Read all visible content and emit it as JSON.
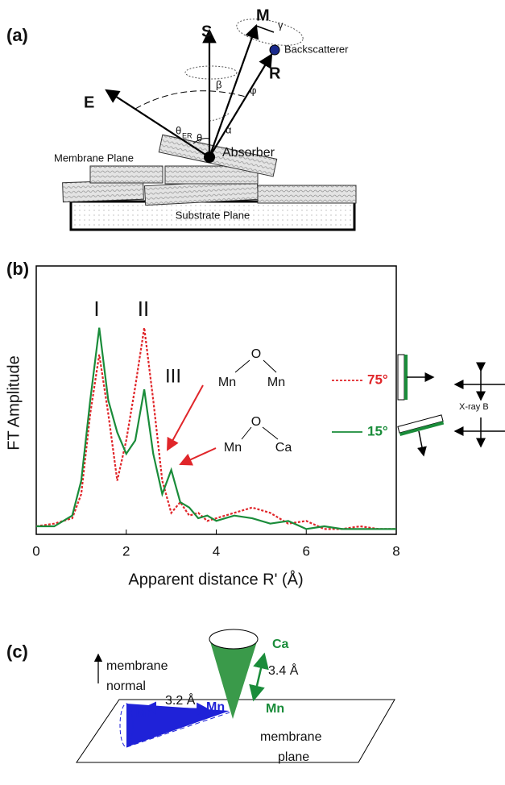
{
  "panel_a": {
    "label": "(a)",
    "S": "S",
    "M": "M",
    "R": "R",
    "E": "E",
    "backscatterer": "Backscatterer",
    "beta": "β",
    "phi": "φ",
    "gamma": "γ",
    "alpha": "α",
    "theta_er": "θ",
    "theta_er_sub": "ER",
    "theta": "θ",
    "membrane_plane": "Membrane Plane",
    "absorber": "Absorber",
    "substrate_plane": "Substrate Plane"
  },
  "chart_data": {
    "type": "line",
    "label": "(b)",
    "xlabel": "Apparent distance R' (Å)",
    "ylabel": "FT Amplitude",
    "x": [
      0,
      0.4,
      0.8,
      1.0,
      1.2,
      1.4,
      1.6,
      1.8,
      2.0,
      2.2,
      2.4,
      2.6,
      2.8,
      3.0,
      3.2,
      3.4,
      3.6,
      3.8,
      4.0,
      4.4,
      4.8,
      5.2,
      5.6,
      6.0,
      6.4,
      6.8,
      7.2,
      7.6,
      8.0
    ],
    "series": [
      {
        "name": "75°",
        "color": "#e0262a",
        "style": "dotted",
        "values": [
          0.03,
          0.04,
          0.06,
          0.15,
          0.45,
          0.67,
          0.45,
          0.2,
          0.35,
          0.55,
          0.77,
          0.5,
          0.2,
          0.08,
          0.12,
          0.07,
          0.08,
          0.05,
          0.06,
          0.08,
          0.1,
          0.08,
          0.04,
          0.05,
          0.02,
          0.02,
          0.03,
          0.02,
          0.02
        ]
      },
      {
        "name": "15°",
        "color": "#1a8c3a",
        "style": "solid",
        "values": [
          0.03,
          0.03,
          0.07,
          0.2,
          0.5,
          0.77,
          0.5,
          0.38,
          0.3,
          0.35,
          0.54,
          0.3,
          0.15,
          0.24,
          0.12,
          0.1,
          0.06,
          0.07,
          0.05,
          0.07,
          0.06,
          0.04,
          0.05,
          0.02,
          0.03,
          0.02,
          0.02,
          0.02,
          0.02
        ]
      }
    ],
    "xlim": [
      0,
      8
    ],
    "ylim": [
      0,
      1
    ],
    "xticks": [
      0,
      2,
      4,
      6,
      8
    ],
    "peaks": [
      "I",
      "II",
      "III"
    ],
    "motif1": {
      "o": "O",
      "left": "Mn",
      "right": "Mn"
    },
    "motif2": {
      "o": "O",
      "left": "Mn",
      "right": "Ca"
    },
    "xray": "X-ray B"
  },
  "panel_c": {
    "label": "(c)",
    "normal_1": "membrane",
    "normal_2": "normal",
    "mn_left": "Mn",
    "mn_mid": "Mn",
    "dist_mn": "3.2 Å",
    "ca": "Ca",
    "dist_ca": "3.4 Å",
    "mn_green": "Mn",
    "plane_1": "membrane",
    "plane_2": "plane"
  }
}
